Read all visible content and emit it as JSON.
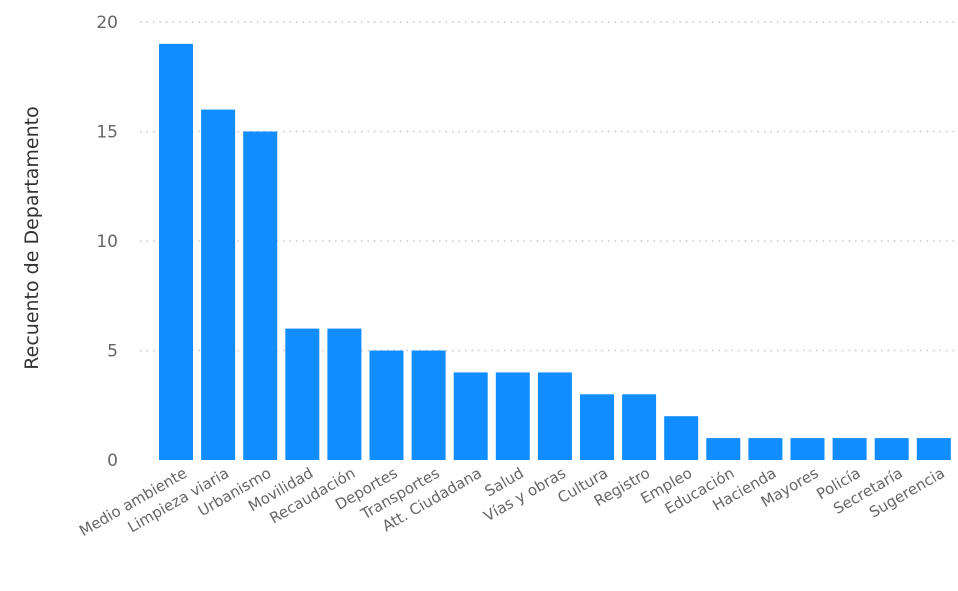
{
  "chart_data": {
    "type": "bar",
    "title": "",
    "xlabel": "",
    "ylabel": "Recuento de Departamento",
    "ylim": [
      0,
      20
    ],
    "yticks": [
      0,
      5,
      10,
      15,
      20
    ],
    "grid": true,
    "bar_color": "#118dff",
    "categories": [
      "Medio ambiente",
      "Limpieza viaria",
      "Urbanismo",
      "Movilidad",
      "Recaudación",
      "Deportes",
      "Transportes",
      "Att. Ciudadana",
      "Salud",
      "Vías y obras",
      "Cultura",
      "Registro",
      "Empleo",
      "Educación",
      "Hacienda",
      "Mayores",
      "Policía",
      "Secretaría",
      "Sugerencia"
    ],
    "values": [
      19,
      16,
      15,
      6,
      6,
      5,
      5,
      4,
      4,
      4,
      3,
      3,
      2,
      1,
      1,
      1,
      1,
      1,
      1
    ]
  }
}
